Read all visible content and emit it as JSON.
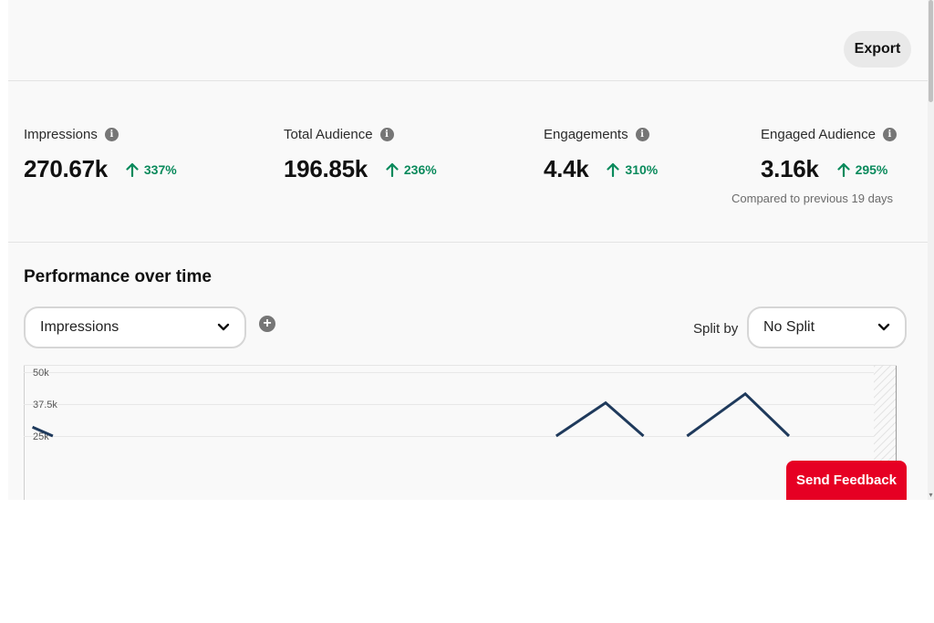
{
  "toolbar": {
    "export_label": "Export"
  },
  "metrics": [
    {
      "label": "Impressions",
      "value": "270.67k",
      "change": "337%"
    },
    {
      "label": "Total Audience",
      "value": "196.85k",
      "change": "236%"
    },
    {
      "label": "Engagements",
      "value": "4.4k",
      "change": "310%"
    },
    {
      "label": "Engaged Audience",
      "value": "3.16k",
      "change": "295%"
    }
  ],
  "compare_note": "Compared to previous 19 days",
  "performance": {
    "title": "Performance over time",
    "metric_select": "Impressions",
    "split_label": "Split by",
    "split_select": "No Split"
  },
  "chart_data": {
    "type": "line",
    "yticks": [
      "50k",
      "37.5k",
      "25k"
    ],
    "ylim": [
      0,
      50000
    ],
    "series": [
      {
        "color": "#1f3a5c",
        "segments": [
          {
            "x": [
              0.3,
              1.0
            ],
            "y": [
              28500,
              25000
            ]
          },
          {
            "x": [
              18.3,
              20.0,
              21.3
            ],
            "y": [
              25000,
              38000,
              25000
            ]
          },
          {
            "x": [
              22.8,
              24.8,
              26.3
            ],
            "y": [
              25000,
              41500,
              25000
            ]
          }
        ]
      }
    ],
    "x_count": 30,
    "grid": true
  },
  "feedback": {
    "label": "Send Feedback"
  },
  "colors": {
    "accent_red": "#e60023",
    "trend_green": "#0a8a5c",
    "line": "#1f3a5c"
  }
}
